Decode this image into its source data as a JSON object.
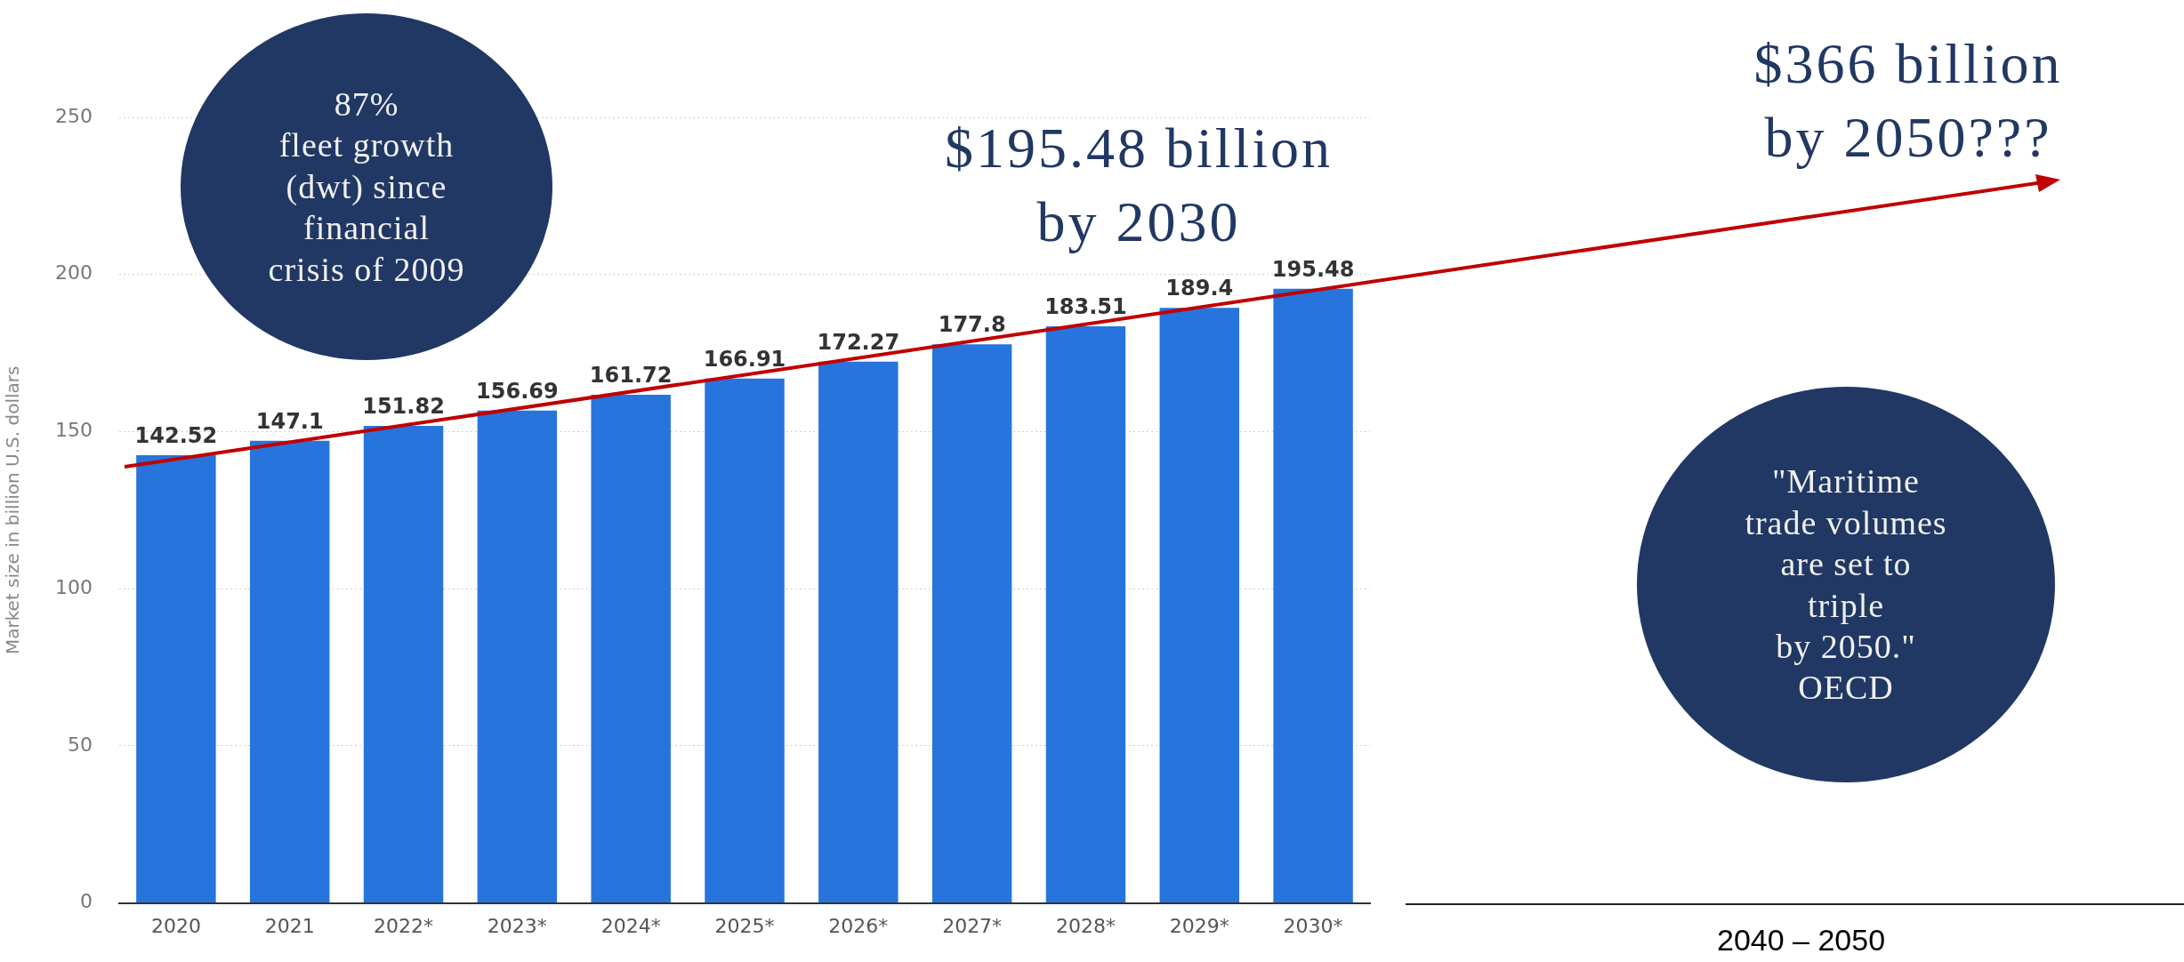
{
  "chart_data": {
    "type": "bar",
    "ylabel": "Market size in billion U.S. dollars",
    "categories": [
      "2020",
      "2021",
      "2022*",
      "2023*",
      "2024*",
      "2025*",
      "2026*",
      "2027*",
      "2028*",
      "2029*",
      "2030*"
    ],
    "values": [
      142.52,
      147.1,
      151.82,
      156.69,
      161.72,
      166.91,
      172.27,
      177.8,
      183.51,
      189.4,
      195.48
    ],
    "color": "#2775dc",
    "ylim": [
      0,
      250
    ],
    "yticks": [
      0,
      50,
      100,
      150,
      200,
      250
    ],
    "grid": "y",
    "legend": false,
    "data_labels": true,
    "annotations": [
      "87%\nfleet growth\n(dwt) since\nfinancial\ncrisis of 2009",
      "$195.48 billion\nby 2030",
      "$366 billion\nby 2050???",
      "\"Maritime\ntrade volumes\nare set to\ntriple\nby 2050.\"\nOECD",
      "2040 – 2050"
    ]
  }
}
